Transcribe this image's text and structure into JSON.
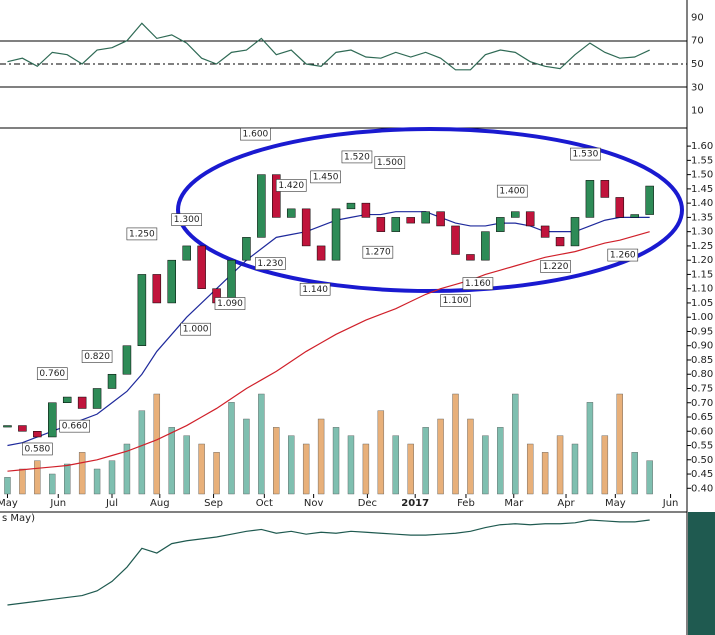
{
  "chart_data": {
    "type": "candlestick",
    "xlim": [
      -0.5,
      45.5
    ],
    "xticks": [
      {
        "value": 0,
        "label": "May"
      },
      {
        "value": 3.4,
        "label": "Jun"
      },
      {
        "value": 7.0,
        "label": "Jul"
      },
      {
        "value": 10.2,
        "label": "Aug"
      },
      {
        "value": 13.8,
        "label": "Sep"
      },
      {
        "value": 17.2,
        "label": "Oct"
      },
      {
        "value": 20.5,
        "label": "Nov"
      },
      {
        "value": 24.1,
        "label": "Dec"
      },
      {
        "value": 27.3,
        "label": "2017"
      },
      {
        "value": 30.7,
        "label": "Feb"
      },
      {
        "value": 33.9,
        "label": "Mar"
      },
      {
        "value": 37.4,
        "label": "Apr"
      },
      {
        "value": 40.7,
        "label": "May"
      },
      {
        "value": 44.4,
        "label": "Jun"
      }
    ],
    "ylim": [
      0.38,
      1.66
    ],
    "yticks": [
      {
        "value": 0.4,
        "label": "0.40"
      },
      {
        "value": 0.45,
        "label": "0.45"
      },
      {
        "value": 0.5,
        "label": "0.50"
      },
      {
        "value": 0.55,
        "label": "0.55"
      },
      {
        "value": 0.6,
        "label": "0.60"
      },
      {
        "value": 0.65,
        "label": "0.65"
      },
      {
        "value": 0.7,
        "label": "0.70"
      },
      {
        "value": 0.75,
        "label": "0.75"
      },
      {
        "value": 0.8,
        "label": "0.80"
      },
      {
        "value": 0.85,
        "label": "0.85"
      },
      {
        "value": 0.9,
        "label": "0.90"
      },
      {
        "value": 0.95,
        "label": "0.95"
      },
      {
        "value": 1.0,
        "label": "1.00"
      },
      {
        "value": 1.05,
        "label": "1.05"
      },
      {
        "value": 1.1,
        "label": "1.10"
      },
      {
        "value": 1.15,
        "label": "1.15"
      },
      {
        "value": 1.2,
        "label": "1.20"
      },
      {
        "value": 1.25,
        "label": "1.25"
      },
      {
        "value": 1.3,
        "label": "1.30"
      },
      {
        "value": 1.35,
        "label": "1.35"
      },
      {
        "value": 1.4,
        "label": "1.40"
      },
      {
        "value": 1.45,
        "label": "1.45"
      },
      {
        "value": 1.5,
        "label": "1.50"
      },
      {
        "value": 1.55,
        "label": "1.55"
      },
      {
        "value": 1.6,
        "label": "1.60"
      }
    ],
    "close": [
      0.62,
      0.6,
      0.58,
      0.7,
      0.72,
      0.68,
      0.75,
      0.8,
      0.9,
      1.15,
      1.05,
      1.2,
      1.25,
      1.1,
      1.05,
      1.2,
      1.28,
      1.5,
      1.35,
      1.38,
      1.25,
      1.2,
      1.38,
      1.4,
      1.35,
      1.3,
      1.35,
      1.33,
      1.37,
      1.32,
      1.22,
      1.2,
      1.3,
      1.35,
      1.37,
      1.32,
      1.28,
      1.25,
      1.35,
      1.48,
      1.42,
      1.35,
      1.36,
      1.46
    ],
    "up_color": "#2e8b57",
    "down_color": "#c0143c",
    "ma50": {
      "color": "#1f2a9c",
      "values": [
        0.55,
        0.56,
        0.58,
        0.6,
        0.62,
        0.64,
        0.66,
        0.7,
        0.74,
        0.8,
        0.88,
        0.94,
        1.0,
        1.05,
        1.1,
        1.15,
        1.2,
        1.24,
        1.28,
        1.29,
        1.3,
        1.32,
        1.34,
        1.35,
        1.36,
        1.36,
        1.37,
        1.37,
        1.37,
        1.35,
        1.33,
        1.32,
        1.32,
        1.33,
        1.33,
        1.32,
        1.3,
        1.3,
        1.3,
        1.32,
        1.34,
        1.35,
        1.35,
        1.35
      ]
    },
    "ma200": {
      "color": "#d0202a",
      "values": [
        0.46,
        0.465,
        0.47,
        0.475,
        0.48,
        0.49,
        0.5,
        0.515,
        0.53,
        0.55,
        0.57,
        0.595,
        0.62,
        0.65,
        0.68,
        0.715,
        0.75,
        0.78,
        0.81,
        0.845,
        0.88,
        0.91,
        0.94,
        0.965,
        0.99,
        1.01,
        1.03,
        1.055,
        1.08,
        1.1,
        1.115,
        1.13,
        1.15,
        1.165,
        1.18,
        1.195,
        1.21,
        1.22,
        1.23,
        1.245,
        1.26,
        1.27,
        1.285,
        1.3
      ]
    },
    "volume": {
      "up_color": "#7fbfb0",
      "down_color": "#e8b07a",
      "values": [
        10,
        15,
        20,
        12,
        18,
        25,
        15,
        20,
        30,
        50,
        60,
        40,
        35,
        30,
        25,
        55,
        45,
        60,
        40,
        35,
        30,
        45,
        40,
        35,
        30,
        50,
        35,
        30,
        40,
        45,
        60,
        45,
        35,
        40,
        60,
        30,
        25,
        35,
        30,
        55,
        35,
        60,
        25,
        20
      ]
    },
    "annotations": [
      {
        "x": 2,
        "value": 0.58,
        "label": "0.580",
        "pos": "below"
      },
      {
        "x": 4.5,
        "value": 0.66,
        "label": "0.660",
        "pos": "below"
      },
      {
        "x": 3,
        "value": 0.76,
        "label": "0.760",
        "pos": "above"
      },
      {
        "x": 6,
        "value": 0.82,
        "label": "0.820",
        "pos": "above"
      },
      {
        "x": 9,
        "value": 1.25,
        "label": "1.250",
        "pos": "above"
      },
      {
        "x": 12,
        "value": 1.3,
        "label": "1.300",
        "pos": "above"
      },
      {
        "x": 12.6,
        "value": 1.0,
        "label": "1.000",
        "pos": "below"
      },
      {
        "x": 14.9,
        "value": 1.09,
        "label": "1.090",
        "pos": "below"
      },
      {
        "x": 16.6,
        "value": 1.6,
        "label": "1.600",
        "pos": "above"
      },
      {
        "x": 19,
        "value": 1.42,
        "label": "1.420",
        "pos": "above"
      },
      {
        "x": 17.6,
        "value": 1.23,
        "label": "1.230",
        "pos": "below"
      },
      {
        "x": 21.3,
        "value": 1.45,
        "label": "1.450",
        "pos": "above"
      },
      {
        "x": 20.6,
        "value": 1.14,
        "label": "1.140",
        "pos": "below"
      },
      {
        "x": 23.4,
        "value": 1.52,
        "label": "1.520",
        "pos": "above"
      },
      {
        "x": 24.8,
        "value": 1.27,
        "label": "1.270",
        "pos": "below"
      },
      {
        "x": 25.6,
        "value": 1.5,
        "label": "1.500",
        "pos": "above"
      },
      {
        "x": 30,
        "value": 1.1,
        "label": "1.100",
        "pos": "below"
      },
      {
        "x": 31.5,
        "value": 1.16,
        "label": "1.160",
        "pos": "below"
      },
      {
        "x": 33.8,
        "value": 1.4,
        "label": "1.400",
        "pos": "above"
      },
      {
        "x": 36.7,
        "value": 1.22,
        "label": "1.220",
        "pos": "below"
      },
      {
        "x": 38.7,
        "value": 1.53,
        "label": "1.530",
        "pos": "above"
      },
      {
        "x": 41.2,
        "value": 1.26,
        "label": "1.260",
        "pos": "below"
      }
    ],
    "rsi": {
      "color": "#2f6a55",
      "ylim": [
        -5,
        105
      ],
      "yticks": [
        90,
        70,
        50,
        30,
        10
      ],
      "values": [
        52,
        55,
        48,
        60,
        58,
        50,
        62,
        64,
        70,
        85,
        72,
        75,
        68,
        55,
        50,
        60,
        62,
        72,
        58,
        62,
        50,
        48,
        60,
        62,
        56,
        55,
        60,
        56,
        60,
        55,
        45,
        45,
        58,
        62,
        60,
        52,
        48,
        46,
        58,
        68,
        60,
        55,
        56,
        62
      ]
    },
    "rs_line": {
      "label": "s May)",
      "color": "#1f5a50",
      "values": [
        10,
        12,
        14,
        16,
        18,
        20,
        25,
        35,
        50,
        70,
        65,
        75,
        78,
        80,
        82,
        85,
        88,
        90,
        86,
        88,
        85,
        87,
        86,
        88,
        87,
        86,
        85,
        84,
        84,
        85,
        86,
        88,
        92,
        95,
        96,
        95,
        96,
        96,
        97,
        100,
        99,
        98,
        98,
        100
      ]
    }
  }
}
